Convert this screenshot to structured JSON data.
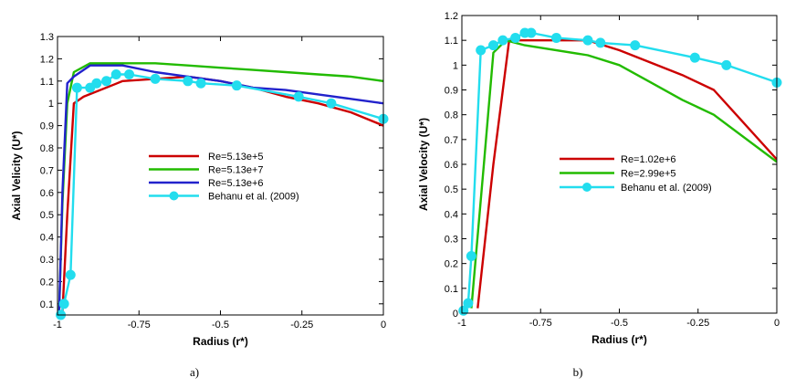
{
  "chart_data": [
    {
      "type": "line",
      "caption": "a)",
      "xlabel": "Radius (r*)",
      "ylabel": "Axial Velicity (U*)",
      "xlim": [
        -1,
        0
      ],
      "ylim": [
        0.05,
        1.3
      ],
      "xticks": [
        -1,
        -0.75,
        -0.5,
        -0.25,
        0
      ],
      "xtick_labels": [
        "-1",
        "-0.75",
        "-0.5",
        "-0.25",
        "0"
      ],
      "yticks": [
        0.1,
        0.2,
        0.3,
        0.4,
        0.5,
        0.6,
        0.7,
        0.8,
        0.9,
        1,
        1.1,
        1.2,
        1.3
      ],
      "ytick_labels": [
        "0.1",
        "0.2",
        "0.3",
        "0.4",
        "0.5",
        "0.6",
        "0.7",
        "0.8",
        "0.9",
        "1",
        "1.1",
        "1.2",
        "1.3"
      ],
      "legend_position": "center-left",
      "series": [
        {
          "name": "Re=5.13e+5",
          "color": "#cc0000",
          "markers": false,
          "x": [
            -0.985,
            -0.97,
            -0.95,
            -0.92,
            -0.8,
            -0.7,
            -0.6,
            -0.5,
            -0.4,
            -0.3,
            -0.2,
            -0.1,
            0
          ],
          "y": [
            0.06,
            0.5,
            1.0,
            1.03,
            1.1,
            1.11,
            1.12,
            1.1,
            1.07,
            1.03,
            1.0,
            0.96,
            0.9
          ]
        },
        {
          "name": "Re=5.13e+7",
          "color": "#22bb00",
          "markers": false,
          "x": [
            -0.995,
            -0.985,
            -0.97,
            -0.95,
            -0.9,
            -0.8,
            -0.7,
            -0.6,
            -0.5,
            -0.4,
            -0.3,
            -0.2,
            -0.1,
            0
          ],
          "y": [
            0.07,
            0.55,
            1.0,
            1.14,
            1.18,
            1.18,
            1.18,
            1.17,
            1.16,
            1.15,
            1.14,
            1.13,
            1.12,
            1.1
          ]
        },
        {
          "name": "Re=5.13e+6",
          "color": "#2222cc",
          "markers": false,
          "x": [
            -0.995,
            -0.985,
            -0.97,
            -0.95,
            -0.9,
            -0.8,
            -0.7,
            -0.6,
            -0.5,
            -0.4,
            -0.3,
            -0.2,
            -0.1,
            0
          ],
          "y": [
            0.06,
            0.6,
            1.09,
            1.12,
            1.17,
            1.17,
            1.14,
            1.12,
            1.1,
            1.07,
            1.06,
            1.04,
            1.02,
            1.0
          ]
        },
        {
          "name": "Behanu et al. (2009)",
          "color": "#22ddee",
          "markers": true,
          "x": [
            -0.99,
            -0.98,
            -0.96,
            -0.94,
            -0.9,
            -0.88,
            -0.85,
            -0.82,
            -0.78,
            -0.7,
            -0.6,
            -0.56,
            -0.45,
            -0.26,
            -0.16,
            0
          ],
          "y": [
            0.05,
            0.1,
            0.23,
            1.07,
            1.07,
            1.09,
            1.1,
            1.13,
            1.13,
            1.11,
            1.1,
            1.09,
            1.08,
            1.03,
            1.0,
            0.93
          ]
        }
      ]
    },
    {
      "type": "line",
      "caption": "b)",
      "xlabel": "Radius (r*)",
      "ylabel": "Axial Velocity (U*)",
      "xlim": [
        -1,
        0
      ],
      "ylim": [
        0,
        1.2
      ],
      "xticks": [
        -1,
        -0.75,
        -0.5,
        -0.25,
        0
      ],
      "xtick_labels": [
        "-1",
        "-0.75",
        "-0.5",
        "-0.25",
        "0"
      ],
      "yticks": [
        0,
        0.1,
        0.2,
        0.3,
        0.4,
        0.5,
        0.6,
        0.7,
        0.8,
        0.9,
        1,
        1.1,
        1.2
      ],
      "ytick_labels": [
        "0",
        "0.1",
        "0.2",
        "0.3",
        "0.4",
        "0.5",
        "0.6",
        "0.7",
        "0.8",
        "0.9",
        "1",
        "1.1",
        "1.2"
      ],
      "legend_position": "center-right",
      "series": [
        {
          "name": "Re=1.02e+6",
          "color": "#cc0000",
          "markers": false,
          "x": [
            -0.95,
            -0.9,
            -0.85,
            -0.8,
            -0.7,
            -0.6,
            -0.5,
            -0.4,
            -0.3,
            -0.2,
            0
          ],
          "y": [
            0.02,
            0.6,
            1.1,
            1.1,
            1.1,
            1.1,
            1.06,
            1.01,
            0.96,
            0.9,
            0.62
          ]
        },
        {
          "name": "Re=2.99e+5",
          "color": "#22bb00",
          "markers": false,
          "x": [
            -0.97,
            -0.93,
            -0.9,
            -0.86,
            -0.8,
            -0.6,
            -0.5,
            -0.4,
            -0.3,
            -0.2,
            0
          ],
          "y": [
            0.02,
            0.6,
            1.05,
            1.1,
            1.08,
            1.04,
            1.0,
            0.93,
            0.86,
            0.8,
            0.61
          ]
        },
        {
          "name": "Behanu et al. (2009)",
          "color": "#22ddee",
          "markers": true,
          "x": [
            -0.995,
            -0.98,
            -0.97,
            -0.94,
            -0.9,
            -0.87,
            -0.83,
            -0.8,
            -0.78,
            -0.7,
            -0.6,
            -0.56,
            -0.45,
            -0.26,
            -0.16,
            0
          ],
          "y": [
            0.01,
            0.04,
            0.23,
            1.06,
            1.08,
            1.1,
            1.11,
            1.13,
            1.13,
            1.11,
            1.1,
            1.09,
            1.08,
            1.03,
            1.0,
            0.93
          ]
        }
      ]
    }
  ]
}
